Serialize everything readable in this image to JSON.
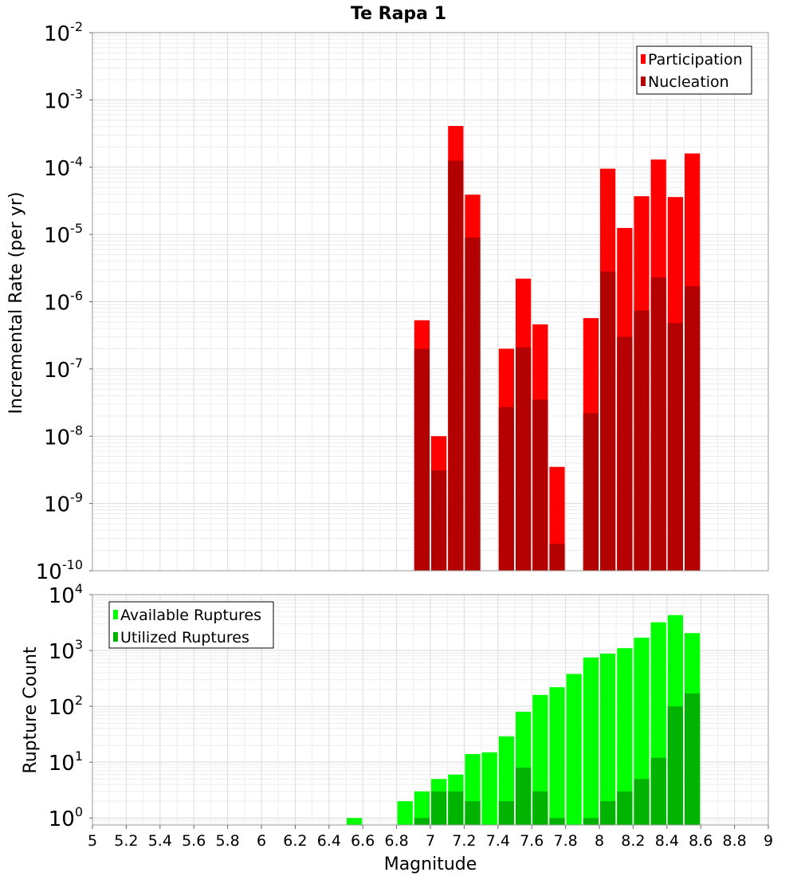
{
  "chart_data": [
    {
      "type": "bar",
      "title": "Te Rapa 1",
      "xlabel": "",
      "ylabel": "Incremental Rate (per yr)",
      "yscale": "log",
      "xlim": [
        5,
        9
      ],
      "ylim": [
        1e-10,
        0.01
      ],
      "y_tick_exponents": [
        "-2",
        "-3",
        "-4",
        "-5",
        "-6",
        "-7",
        "-8",
        "-9",
        "-10"
      ],
      "y_tick_base": "10",
      "legend": "top-right",
      "grid": true,
      "series": [
        {
          "name": "Participation",
          "color": "#ff0000",
          "x": [
            6.95,
            7.05,
            7.15,
            7.25,
            7.45,
            7.55,
            7.65,
            7.75,
            7.95,
            8.05,
            8.15,
            8.25,
            8.35,
            8.45,
            8.55
          ],
          "values": [
            5.3e-07,
            1e-08,
            0.00041,
            3.9e-05,
            2e-07,
            2.2e-06,
            4.6e-07,
            3.5e-09,
            5.7e-07,
            9.5e-05,
            1.25e-05,
            3.7e-05,
            0.00013,
            3.6e-05,
            0.00016
          ]
        },
        {
          "name": "Nucleation",
          "color": "#b30000",
          "x": [
            6.95,
            7.05,
            7.15,
            7.25,
            7.45,
            7.55,
            7.65,
            7.75,
            7.95,
            8.05,
            8.15,
            8.25,
            8.35,
            8.45,
            8.55
          ],
          "values": [
            2e-07,
            3.1e-09,
            0.000125,
            9e-06,
            2.7e-08,
            2.1e-07,
            3.5e-08,
            2.5e-10,
            2.2e-08,
            2.8e-06,
            3e-07,
            7.4e-07,
            2.3e-06,
            4.8e-07,
            1.7e-06
          ]
        }
      ]
    },
    {
      "type": "bar",
      "title": "",
      "xlabel": "Magnitude",
      "ylabel": "Rupture Count",
      "yscale": "log",
      "xlim": [
        5,
        9
      ],
      "ylim": [
        0.75,
        10000
      ],
      "x_ticks": [
        "5",
        "5.2",
        "5.4",
        "5.6",
        "5.8",
        "6",
        "6.2",
        "6.4",
        "6.6",
        "6.8",
        "7",
        "7.2",
        "7.4",
        "7.6",
        "7.8",
        "8",
        "8.2",
        "8.4",
        "8.6",
        "8.8",
        "9"
      ],
      "y_tick_exponents": [
        "4",
        "3",
        "2",
        "1",
        "0"
      ],
      "y_tick_base": "10",
      "legend": "top-left",
      "grid": true,
      "series": [
        {
          "name": "Available Ruptures",
          "color": "#00ff00",
          "x": [
            6.55,
            6.85,
            6.95,
            7.05,
            7.15,
            7.25,
            7.35,
            7.45,
            7.55,
            7.65,
            7.75,
            7.85,
            7.95,
            8.05,
            8.15,
            8.25,
            8.35,
            8.45,
            8.55
          ],
          "values": [
            1,
            2,
            3,
            5,
            6,
            14,
            15,
            29,
            80,
            160,
            220,
            380,
            750,
            880,
            1100,
            1700,
            3200,
            4300,
            2050
          ]
        },
        {
          "name": "Utilized Ruptures",
          "color": "#00b300",
          "x": [
            6.95,
            7.05,
            7.15,
            7.25,
            7.45,
            7.55,
            7.65,
            7.75,
            7.95,
            8.05,
            8.15,
            8.25,
            8.35,
            8.45,
            8.55
          ],
          "values": [
            1,
            3,
            3,
            2,
            2,
            8,
            3,
            1,
            1,
            2,
            3,
            5,
            12,
            100,
            170
          ]
        }
      ]
    }
  ]
}
